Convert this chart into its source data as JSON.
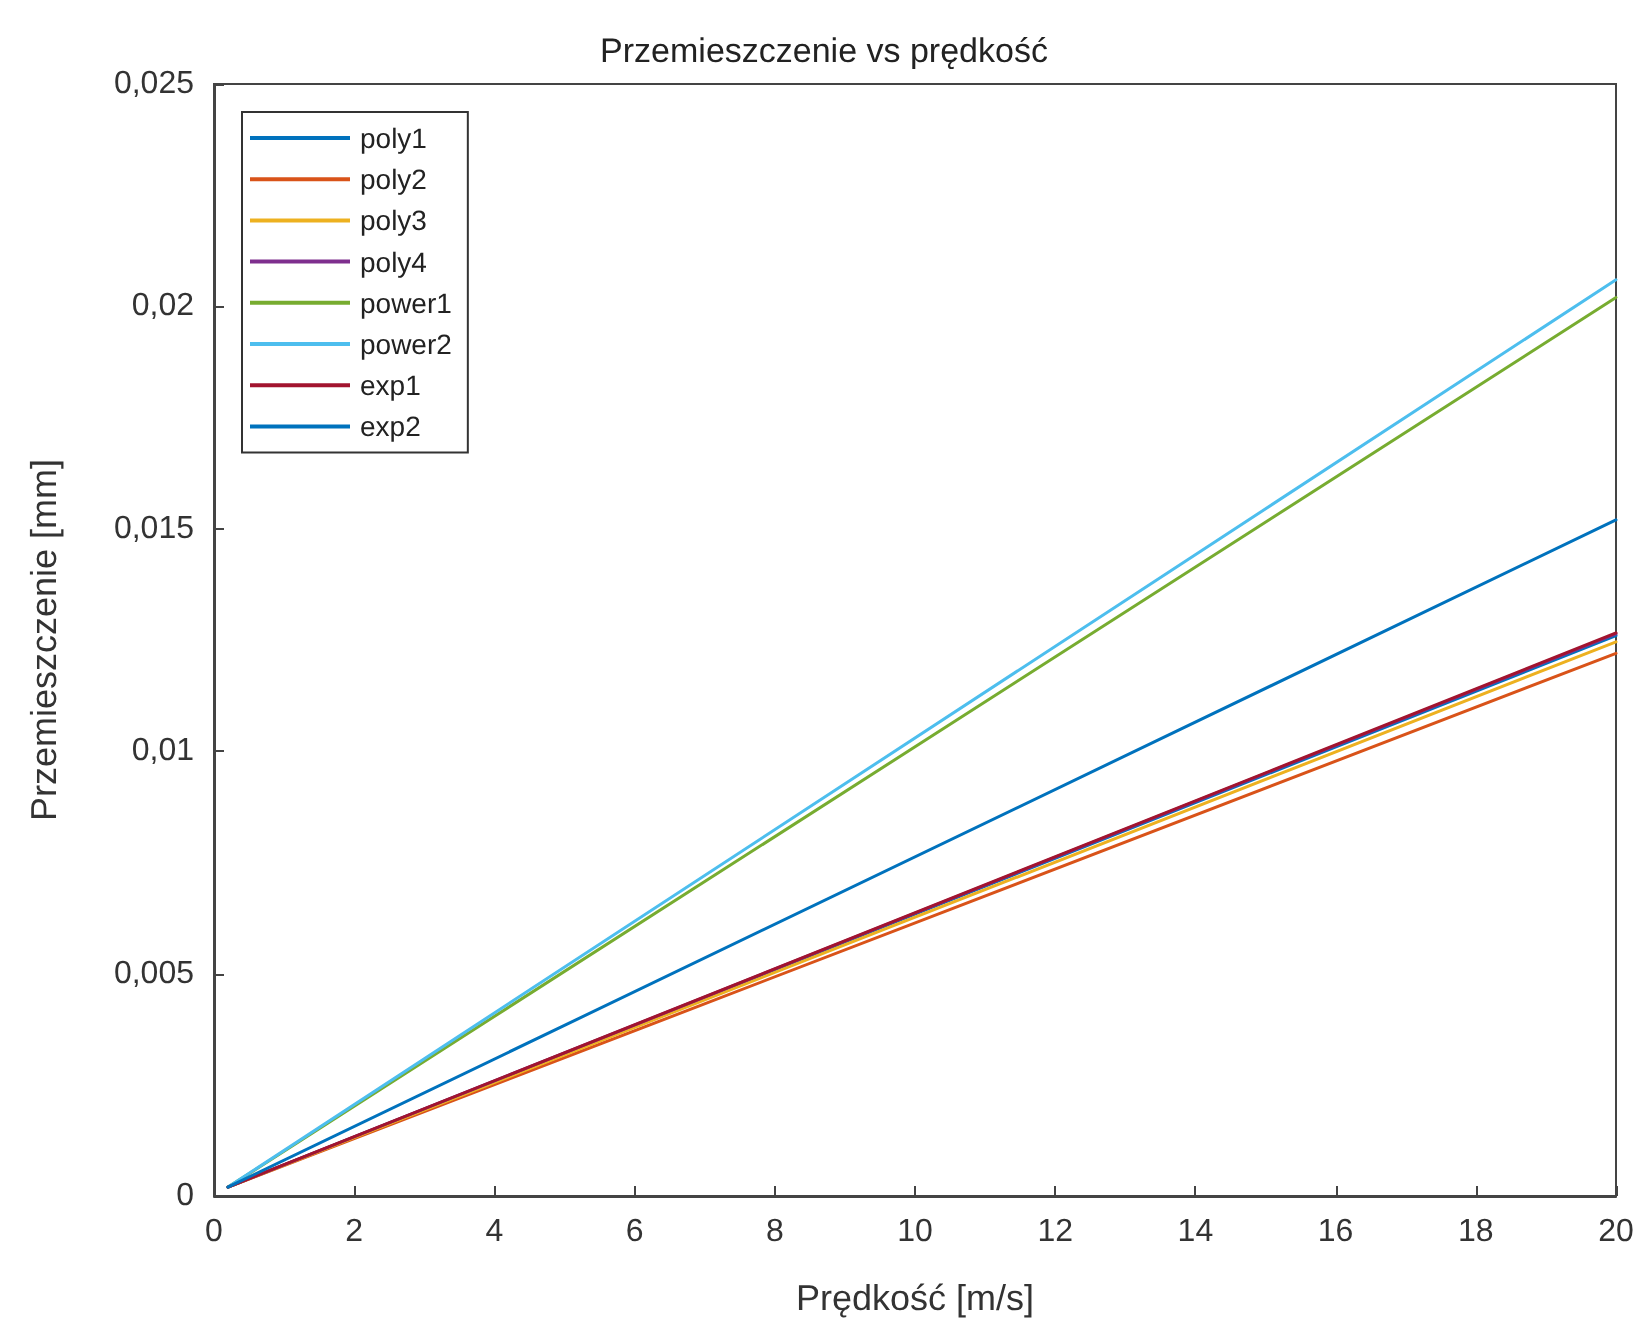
{
  "chart_data": {
    "type": "line",
    "title": "Przemieszczenie vs prędkość",
    "xlabel": "Prędkość [m/s]",
    "ylabel": "Przemieszczenie [mm]",
    "xlim": [
      0,
      20
    ],
    "xticks": [
      0,
      2,
      4,
      6,
      8,
      10,
      12,
      14,
      16,
      18,
      20
    ],
    "ylim": [
      0,
      0.025
    ],
    "yticks": [
      {
        "value": 0,
        "label": "0"
      },
      {
        "value": 0.005,
        "label": "0,005"
      },
      {
        "value": 0.01,
        "label": "0,01"
      },
      {
        "value": 0.015,
        "label": "0,015"
      },
      {
        "value": 0.02,
        "label": "0,02"
      },
      {
        "value": 0.025,
        "label": "0,025"
      }
    ],
    "x": [
      0.2,
      20
    ],
    "series": [
      {
        "name": "poly1",
        "color": "#0072bd",
        "values": [
          0.0002,
          0.0126
        ]
      },
      {
        "name": "poly2",
        "color": "#d95319",
        "values": [
          0.0002,
          0.0122
        ]
      },
      {
        "name": "poly3",
        "color": "#edb120",
        "values": [
          0.0002,
          0.01246
        ]
      },
      {
        "name": "poly4",
        "color": "#7e2f8e",
        "values": [
          0.0002,
          0.01264
        ]
      },
      {
        "name": "power1",
        "color": "#77ac30",
        "values": [
          0.0002,
          0.0202
        ]
      },
      {
        "name": "power2",
        "color": "#4dbeee",
        "values": [
          0.0002,
          0.0206
        ]
      },
      {
        "name": "exp1",
        "color": "#a2142f",
        "values": [
          0.0002,
          0.01266
        ]
      },
      {
        "name": "exp2",
        "color": "#0072bd",
        "values": [
          0.0002,
          0.0152
        ]
      }
    ],
    "grid": false,
    "legend": "top left",
    "marker": "none",
    "line_style": "solid"
  }
}
